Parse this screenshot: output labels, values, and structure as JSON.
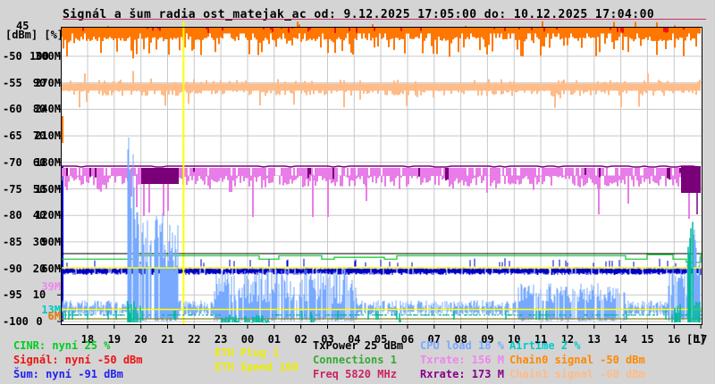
{
  "title": "Signál a šum radia ost_matejak_ac od: 9.12.2025 17:05:00 do: 10.12.2025 17:04:00",
  "axis": {
    "header_top": "45",
    "header_units": "[dBm] [%]",
    "hour_unit": "[h]",
    "dbm_ticks": [
      "-50",
      "-55",
      "-60",
      "-65",
      "-70",
      "-75",
      "-80",
      "-85",
      "-90",
      "-95",
      "-100"
    ],
    "pct_ticks": [
      "100",
      "90",
      "80",
      "70",
      "60",
      "50",
      "40",
      "30",
      "20",
      "10",
      "0"
    ],
    "rate_ticks": [
      "300M",
      "270M",
      "240M",
      "210M",
      "180M",
      "150M",
      "120M",
      "90M",
      "60M",
      "",
      ""
    ],
    "special_rate_ticks": [
      {
        "label": "39M",
        "color": "#ee86ee",
        "rate": 39
      },
      {
        "label": "13M",
        "color": "#00c8c8",
        "rate": 13
      },
      {
        "label": "6M",
        "color": "#dd7700",
        "rate": 6
      }
    ],
    "hours": [
      "18",
      "19",
      "20",
      "21",
      "22",
      "23",
      "00",
      "01",
      "02",
      "03",
      "04",
      "05",
      "06",
      "07",
      "08",
      "09",
      "10",
      "11",
      "12",
      "13",
      "14",
      "15",
      "16",
      "17"
    ]
  },
  "legend": {
    "items": [
      {
        "id": "cinr",
        "label": "CINR: nyní 25 %",
        "color": "#00cc22"
      },
      {
        "id": "signal",
        "label": "Signál: nyní -50 dBm",
        "color": "#ee1111"
      },
      {
        "id": "noise",
        "label": "Šum: nyní -91 dBm",
        "color": "#2222ee"
      },
      {
        "id": "eth_plug",
        "label": "ETH Plug 1",
        "color": "#eded00"
      },
      {
        "id": "eth_speed",
        "label": "ETH Speed 100",
        "color": "#eded00"
      },
      {
        "id": "txpower",
        "label": "TxPower 25 dBm",
        "color": "#000000"
      },
      {
        "id": "connections",
        "label": "Connections 1",
        "color": "#33aa33"
      },
      {
        "id": "freq",
        "label": "Freq 5820 MHz",
        "color": "#cc2266"
      },
      {
        "id": "cpu",
        "label": "CPU load 18 %",
        "color": "#77aaff"
      },
      {
        "id": "txrate",
        "label": "Txrate: 156 M",
        "color": "#ee86ee"
      },
      {
        "id": "rxrate",
        "label": "Rxrate: 173 M",
        "color": "#880088"
      },
      {
        "id": "airtime",
        "label": "Airtime 2 %",
        "color": "#00cccc"
      },
      {
        "id": "chain0",
        "label": "Chain0 signal -50 dBm",
        "color": "#ff8800"
      },
      {
        "id": "chain1",
        "label": "Chain1 signal -60 dBm",
        "color": "#ffbb88"
      }
    ]
  },
  "chart_data": {
    "type": "line",
    "title": "Signál a šum radia ost_matejak_ac",
    "time_from": "9.12.2025 17:05:00",
    "time_to": "10.12.2025 17:04:00",
    "x_hours": [
      "17",
      "18",
      "19",
      "20",
      "21",
      "22",
      "23",
      "00",
      "01",
      "02",
      "03",
      "04",
      "05",
      "06",
      "07",
      "08",
      "09",
      "10",
      "11",
      "12",
      "13",
      "14",
      "15",
      "16",
      "17"
    ],
    "xlabel": "[h]",
    "y_axes": {
      "dbm_range": [
        -100,
        -45
      ],
      "pct_range": [
        0,
        100
      ],
      "rate_range_mbit": [
        0,
        330
      ]
    },
    "grid": true,
    "event_vline_hour": 21.6,
    "series": [
      {
        "name": "Signál",
        "unit": "dBm",
        "color": "#ee1111",
        "current": -50,
        "values": [
          -45,
          -45,
          -46,
          -45,
          -45,
          -46,
          -45,
          -45,
          -45,
          -46,
          -45,
          -45,
          -46,
          -45,
          -45,
          -45,
          -46,
          -45,
          -45,
          -46,
          -45,
          -45,
          -45,
          -46,
          -50
        ]
      },
      {
        "name": "Šum",
        "unit": "dBm",
        "color": "#0000cc",
        "current": -91,
        "values": [
          -91,
          -91,
          -92,
          -91,
          -91,
          -92,
          -91,
          -91,
          -91,
          -92,
          -91,
          -91,
          -92,
          -91,
          -91,
          -91,
          -92,
          -91,
          -91,
          -92,
          -91,
          -91,
          -91,
          -92,
          -91
        ]
      },
      {
        "name": "CINR",
        "unit": "%",
        "color": "#00cc22",
        "current": 25,
        "values": [
          25,
          25,
          24,
          25,
          25,
          25,
          26,
          25,
          25,
          25,
          24,
          25,
          25,
          25,
          25,
          25,
          25,
          25,
          25,
          25,
          26,
          25,
          27,
          26,
          25
        ]
      },
      {
        "name": "Chain0 signal",
        "unit": "dBm",
        "color": "#ff7700",
        "current": -50,
        "values": [
          -45,
          -46,
          -45,
          -45,
          -46,
          -45,
          -45,
          -46,
          -45,
          -45,
          -46,
          -45,
          -45,
          -45,
          -46,
          -45,
          -45,
          -46,
          -45,
          -45,
          -46,
          -45,
          -45,
          -46,
          -50
        ]
      },
      {
        "name": "Chain1 signal",
        "unit": "dBm",
        "color": "#ffbb88",
        "current": -60,
        "values": [
          -56,
          -56,
          -57,
          -56,
          -57,
          -56,
          -56,
          -57,
          -56,
          -56,
          -57,
          -56,
          -56,
          -57,
          -56,
          -57,
          -56,
          -56,
          -57,
          -56,
          -56,
          -57,
          -56,
          -57,
          -60
        ]
      },
      {
        "name": "Txrate",
        "unit": "M",
        "color": "#e87ce8",
        "current": 156,
        "values": [
          158,
          150,
          142,
          148,
          155,
          160,
          158,
          152,
          148,
          156,
          160,
          158,
          150,
          152,
          158,
          155,
          148,
          152,
          158,
          155,
          150,
          155,
          148,
          160,
          156
        ]
      },
      {
        "name": "Rxrate",
        "unit": "M",
        "color": "#800080",
        "current": 173,
        "values": [
          173,
          173,
          173,
          173,
          173,
          173,
          173,
          173,
          173,
          173,
          173,
          173,
          173,
          173,
          173,
          173,
          173,
          173,
          173,
          173,
          173,
          173,
          173,
          173,
          173
        ]
      },
      {
        "name": "CPU load",
        "unit": "%",
        "color": "#77aaff",
        "current": 18,
        "values": [
          5,
          6,
          62,
          30,
          28,
          8,
          5,
          6,
          5,
          6,
          5,
          6,
          5,
          5,
          6,
          5,
          6,
          7,
          8,
          8,
          7,
          6,
          5,
          35,
          18
        ]
      },
      {
        "name": "Airtime",
        "unit": "%",
        "color": "#00b89c",
        "current": 2,
        "values": [
          2,
          2,
          9,
          5,
          3,
          2,
          2,
          2,
          2,
          2,
          2,
          2,
          2,
          2,
          2,
          2,
          2,
          2,
          2,
          2,
          2,
          2,
          2,
          25,
          2
        ]
      },
      {
        "name": "TxPower",
        "unit": "dBm",
        "color": "#000000",
        "current": 25,
        "values": [
          25,
          25,
          25,
          25,
          25,
          25,
          25,
          25,
          25,
          25,
          25,
          25,
          25,
          25,
          25,
          25,
          25,
          25,
          25,
          25,
          25,
          25,
          25,
          25,
          25
        ]
      },
      {
        "name": "Connections",
        "unit": "",
        "color": "#33aa33",
        "current": 1,
        "values": [
          1,
          1,
          1,
          1,
          1,
          1,
          1,
          1,
          1,
          1,
          1,
          1,
          1,
          1,
          1,
          1,
          1,
          1,
          1,
          1,
          1,
          1,
          1,
          1,
          1
        ]
      },
      {
        "name": "ETH Plug",
        "unit": "",
        "color": "#eded00",
        "current": 1,
        "values": [
          1,
          1,
          1,
          1,
          1,
          1,
          1,
          1,
          1,
          1,
          1,
          1,
          1,
          1,
          1,
          1,
          1,
          1,
          1,
          1,
          1,
          1,
          1,
          1,
          1
        ]
      },
      {
        "name": "ETH Speed",
        "unit": "",
        "color": "#eded00",
        "current": 100,
        "values": [
          100,
          100,
          100,
          100,
          100,
          100,
          100,
          100,
          100,
          100,
          100,
          100,
          100,
          100,
          100,
          100,
          100,
          100,
          100,
          100,
          100,
          100,
          100,
          100,
          100
        ]
      },
      {
        "name": "Freq",
        "unit": "MHz",
        "color": "#cc2266",
        "current": 5820,
        "values": [
          5820,
          5820,
          5820,
          5820,
          5820,
          5820,
          5820,
          5820,
          5820,
          5820,
          5820,
          5820,
          5820,
          5820,
          5820,
          5820,
          5820,
          5820,
          5820,
          5820,
          5820,
          5820,
          5820,
          5820,
          5820
        ]
      }
    ]
  }
}
